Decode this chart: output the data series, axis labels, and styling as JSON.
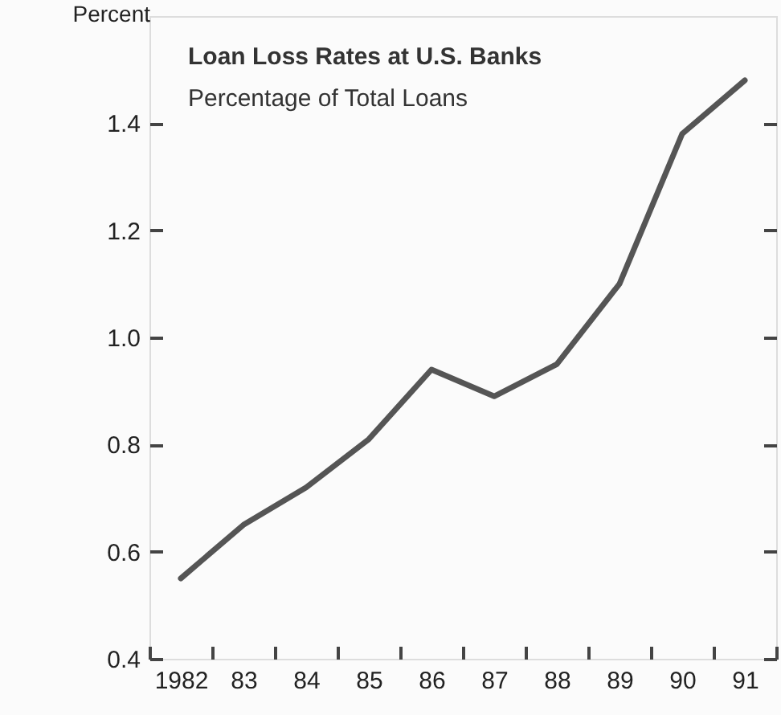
{
  "chart_data": {
    "type": "line",
    "title": "Loan Loss Rates at U.S. Banks",
    "subtitle": "Percentage of Total Loans",
    "ylabel": "Percent",
    "categories": [
      "1982",
      "83",
      "84",
      "85",
      "86",
      "87",
      "88",
      "89",
      "90",
      "91"
    ],
    "series": [
      {
        "color": "#555555",
        "values": [
          0.55,
          0.65,
          0.72,
          0.81,
          0.94,
          0.89,
          0.95,
          1.1,
          1.38,
          1.48
        ]
      }
    ],
    "ylim": [
      0.4,
      1.6
    ],
    "yticks": [
      {
        "value": 0.4,
        "label": "0.4"
      },
      {
        "value": 0.6,
        "label": "0.6"
      },
      {
        "value": 0.8,
        "label": "0.8"
      },
      {
        "value": 1.0,
        "label": "1.0"
      },
      {
        "value": 1.2,
        "label": "1.2"
      },
      {
        "value": 1.4,
        "label": "1.4"
      }
    ],
    "grid": false,
    "marker": "none",
    "line_style": "solid"
  }
}
